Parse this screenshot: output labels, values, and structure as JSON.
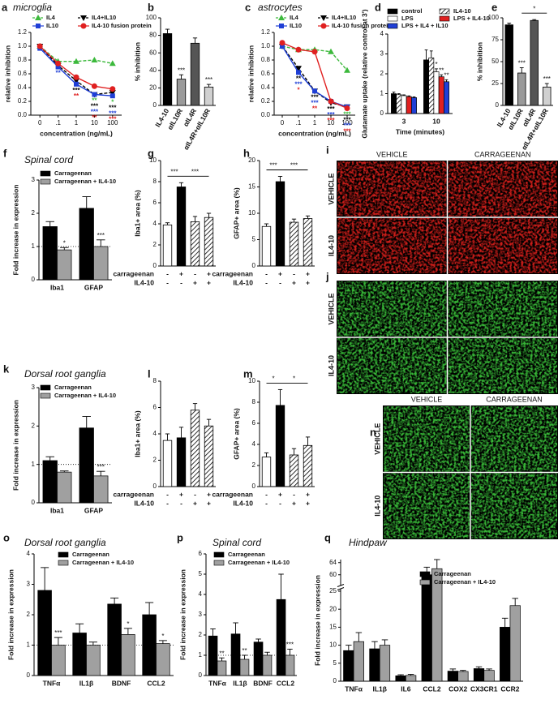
{
  "chart_data": [
    {
      "panel": "a",
      "type": "line",
      "title": "microglia",
      "categories": [
        "0",
        ".1",
        "1",
        "10",
        "100"
      ],
      "xlabel": "concentration (ng/mL)",
      "ylabel": "relative inhibition",
      "ylim": [
        0,
        1.2
      ],
      "yticks": [
        {
          "value": 0,
          "label": "0.0"
        },
        0.2,
        0.4,
        0.6,
        0.8,
        {
          "value": 1,
          "label": "1.0"
        },
        1.2
      ],
      "series": [
        {
          "name": "IL4",
          "color": "#3cb93c",
          "dashed": true,
          "marker": "triangle",
          "values": [
            1.0,
            0.78,
            0.78,
            0.8,
            0.75
          ],
          "sig": [
            null,
            null,
            null,
            "**",
            "*"
          ]
        },
        {
          "name": "IL4+IL10",
          "color": "#000000",
          "dashed": true,
          "marker": "triangle-down",
          "values": [
            1.0,
            0.72,
            0.5,
            0.3,
            0.33
          ],
          "sig": [
            null,
            null,
            "***",
            "***",
            "***"
          ]
        },
        {
          "name": "IL10",
          "color": "#1f3fd6",
          "marker": "square",
          "values": [
            0.97,
            0.7,
            0.45,
            0.3,
            0.28
          ],
          "sig": [
            null,
            "**",
            null,
            "***",
            "***"
          ]
        },
        {
          "name": "IL4-10 fusion protein",
          "color": "#e02020",
          "marker": "circle",
          "values": [
            1.0,
            0.75,
            0.55,
            0.42,
            0.38
          ],
          "sig": [
            null,
            null,
            "**",
            "**",
            "***"
          ]
        }
      ]
    },
    {
      "panel": "b",
      "type": "bar",
      "ylabel": "% inhibition",
      "categories": [
        "IL4-10",
        "αIL10R",
        "αIL4R",
        "αIL4R+αIL10R"
      ],
      "values": [
        82,
        30,
        71,
        21
      ],
      "errors": [
        5,
        5,
        6,
        3
      ],
      "fills": [
        "#000000",
        "#9a9a9a",
        "#555555",
        "#d0d0d0"
      ],
      "sig": [
        null,
        "***",
        null,
        "***"
      ],
      "ylim": [
        0,
        100
      ],
      "yticks": [
        0,
        20,
        40,
        60,
        80,
        100
      ]
    },
    {
      "panel": "c",
      "type": "line",
      "title": "astrocytes",
      "categories": [
        "0",
        ".1",
        "1",
        "10",
        "100"
      ],
      "xlabel": "concentration (ng/mL)",
      "ylabel": "relative inhibition",
      "ylim": [
        0,
        1.2
      ],
      "yticks": [
        {
          "value": 0,
          "label": "0.0"
        },
        0.2,
        0.4,
        0.6,
        0.8,
        {
          "value": 1,
          "label": "1.0"
        },
        1.2
      ],
      "series": [
        {
          "name": "IL4",
          "color": "#3cb93c",
          "dashed": true,
          "marker": "triangle",
          "values": [
            1.0,
            0.95,
            0.95,
            0.92,
            0.65
          ],
          "sig": [
            null,
            null,
            null,
            null,
            "***"
          ]
        },
        {
          "name": "IL4+IL10",
          "color": "#000000",
          "dashed": true,
          "marker": "triangle-down",
          "values": [
            1.0,
            0.68,
            0.35,
            0.18,
            0.12
          ],
          "sig": [
            null,
            "**",
            "***",
            "***",
            "***"
          ]
        },
        {
          "name": "IL10",
          "color": "#1f3fd6",
          "marker": "square",
          "values": [
            1.0,
            0.62,
            0.35,
            0.2,
            0.12
          ],
          "sig": [
            null,
            "***",
            "***",
            "***",
            "***"
          ]
        },
        {
          "name": "IL4-10 fusion protein",
          "color": "#e02020",
          "marker": "circle",
          "values": [
            1.05,
            0.95,
            0.92,
            0.2,
            0.1
          ],
          "sig": [
            null,
            "*",
            "**",
            "***",
            "***"
          ]
        }
      ]
    },
    {
      "panel": "d",
      "type": "grouped-bar",
      "ylabel": "Glutamate uptake (relative control at 3')",
      "xlabel": "Time (minutes)",
      "categories": [
        "3",
        "10"
      ],
      "ylim": [
        0,
        4
      ],
      "yticks": [
        0,
        1,
        2,
        3,
        4
      ],
      "series": [
        {
          "name": "control",
          "color": "#000000",
          "values": [
            1.0,
            2.7
          ],
          "errors": [
            0.08,
            0.5
          ]
        },
        {
          "name": "IL4-10",
          "color": "hatch",
          "values": [
            0.95,
            2.8
          ],
          "errors": [
            0.05,
            0.35
          ]
        },
        {
          "name": "LPS",
          "color": "#ffffff",
          "values": [
            0.9,
            2.1
          ],
          "errors": [
            0.04,
            0.15
          ],
          "sig": [
            null,
            "*"
          ]
        },
        {
          "name": "LPS + IL4-10",
          "color": "#e02020",
          "values": [
            0.85,
            1.85
          ],
          "errors": [
            0.04,
            0.1
          ],
          "sig": [
            null,
            "**"
          ]
        },
        {
          "name": "LPS + IL4 + IL10",
          "color": "#1f3fd6",
          "values": [
            0.8,
            1.6
          ],
          "errors": [
            0.04,
            0.1
          ],
          "sig": [
            null,
            "**"
          ]
        }
      ]
    },
    {
      "panel": "e",
      "type": "bar",
      "ylabel": "% inhibition",
      "categories": [
        "IL4-10",
        "αIL10R",
        "αIL4R",
        "αIL4R+αIL10R"
      ],
      "values": [
        92,
        37,
        97,
        21
      ],
      "errors": [
        2,
        6,
        1,
        4
      ],
      "fills": [
        "#000000",
        "#9a9a9a",
        "#555555",
        "#d0d0d0"
      ],
      "sig": [
        null,
        "***",
        null,
        "***"
      ],
      "ylim": [
        0,
        100
      ],
      "yticks": [
        0,
        25,
        50,
        75,
        100
      ],
      "brackets": [
        {
          "from": 1,
          "to": 3,
          "label": "*"
        }
      ]
    },
    {
      "panel": "f",
      "type": "grouped-bar",
      "title": "Spinal cord",
      "ylabel": "Fold increase in expression",
      "categories": [
        "Iba1",
        "GFAP"
      ],
      "ylim": [
        0,
        3
      ],
      "yticks": [
        0,
        1,
        2,
        3
      ],
      "reference_line": 1,
      "series": [
        {
          "name": "Carrageenan",
          "color": "#000000",
          "values": [
            1.6,
            2.15
          ],
          "errors": [
            0.15,
            0.35
          ]
        },
        {
          "name": "Carrageenan + IL4-10",
          "color": "#a0a0a0",
          "values": [
            0.9,
            1.0
          ],
          "errors": [
            0.07,
            0.2
          ],
          "sig": [
            "*",
            "***"
          ]
        }
      ]
    },
    {
      "panel": "g",
      "type": "bar",
      "ylabel": "Iba1+ area (%)",
      "values": [
        3.9,
        7.5,
        4.2,
        4.6
      ],
      "errors": [
        0.2,
        0.4,
        0.5,
        0.4
      ],
      "fills": [
        "#ffffff",
        "#000000",
        "hatch",
        "hatch"
      ],
      "ylim": [
        0,
        10
      ],
      "yticks": [
        0,
        2,
        4,
        6,
        8,
        10
      ],
      "conditions": [
        {
          "name": "carrageenan",
          "marks": [
            "-",
            "+",
            "-",
            "+"
          ]
        },
        {
          "name": "IL4-10",
          "marks": [
            "-",
            "-",
            "+",
            "+"
          ]
        }
      ],
      "brackets": [
        {
          "from": 0,
          "to": 1,
          "label": "***"
        },
        {
          "from": 1,
          "to": 3,
          "label": "***"
        }
      ]
    },
    {
      "panel": "h",
      "type": "bar",
      "ylabel": "GFAP+ area (%)",
      "values": [
        7.5,
        16,
        8.3,
        9
      ],
      "errors": [
        0.5,
        1,
        0.6,
        0.5
      ],
      "fills": [
        "#ffffff",
        "#000000",
        "hatch",
        "hatch"
      ],
      "ylim": [
        0,
        20
      ],
      "yticks": [
        0,
        5,
        10,
        15,
        20
      ],
      "conditions": [
        {
          "name": "carrageenan",
          "marks": [
            "-",
            "+",
            "-",
            "+"
          ]
        },
        {
          "name": "IL4-10",
          "marks": [
            "-",
            "-",
            "+",
            "+"
          ]
        }
      ],
      "brackets": [
        {
          "from": 0,
          "to": 1,
          "label": "***"
        },
        {
          "from": 1,
          "to": 3,
          "label": "***"
        }
      ]
    },
    {
      "panel": "i",
      "type": "image",
      "color": "#e0201c",
      "columns": [
        "VEHICLE",
        "CARRAGEENAN"
      ],
      "rows": [
        "VEHICLE",
        "IL4-10"
      ]
    },
    {
      "panel": "j",
      "type": "image",
      "color": "#3cc83c",
      "rows": [
        "VEHICLE",
        "IL4-10"
      ]
    },
    {
      "panel": "k",
      "type": "grouped-bar",
      "title": "Dorsal root ganglia",
      "ylabel": "Fold increase in expression",
      "categories": [
        "Iba1",
        "GFAP"
      ],
      "ylim": [
        0,
        3
      ],
      "yticks": [
        0,
        1,
        2,
        3
      ],
      "reference_line": 1,
      "series": [
        {
          "name": "Carrageenan",
          "color": "#000000",
          "values": [
            1.1,
            1.95
          ],
          "errors": [
            0.1,
            0.3
          ]
        },
        {
          "name": "Carrageenan + IL4-10",
          "color": "#a0a0a0",
          "values": [
            0.8,
            0.7
          ],
          "errors": [
            0.03,
            0.12
          ],
          "sig": [
            null,
            "***"
          ]
        }
      ]
    },
    {
      "panel": "l",
      "type": "bar",
      "ylabel": "Iba1+ area (%)",
      "values": [
        3.5,
        3.7,
        5.8,
        4.6
      ],
      "errors": [
        0.5,
        0.8,
        0.5,
        0.5
      ],
      "fills": [
        "#ffffff",
        "#000000",
        "hatch",
        "hatch"
      ],
      "ylim": [
        0,
        8
      ],
      "yticks": [
        0,
        2,
        4,
        6,
        8
      ],
      "conditions": [
        {
          "name": "carrageenan",
          "marks": [
            "-",
            "+",
            "-",
            "+"
          ]
        },
        {
          "name": "IL4-10",
          "marks": [
            "-",
            "-",
            "+",
            "+"
          ]
        }
      ]
    },
    {
      "panel": "m",
      "type": "bar",
      "ylabel": "GFAP+ area (%)",
      "values": [
        2.8,
        7.7,
        3.0,
        3.9
      ],
      "errors": [
        0.4,
        1.5,
        0.6,
        0.8
      ],
      "fills": [
        "#ffffff",
        "#000000",
        "hatch",
        "hatch"
      ],
      "ylim": [
        0,
        10
      ],
      "yticks": [
        0,
        2,
        4,
        6,
        8,
        10
      ],
      "conditions": [
        {
          "name": "carrageenan",
          "marks": [
            "-",
            "+",
            "-",
            "+"
          ]
        },
        {
          "name": "IL4-10",
          "marks": [
            "-",
            "-",
            "+",
            "+"
          ]
        }
      ],
      "brackets": [
        {
          "from": 0,
          "to": 1,
          "label": "*"
        },
        {
          "from": 1,
          "to": 3,
          "label": "*"
        }
      ]
    },
    {
      "panel": "n",
      "type": "image",
      "color": "#3cc83c",
      "columns": [
        "VEHICLE",
        "CARRAGEENAN"
      ],
      "rows": [
        "VEHICLE",
        "IL4-10"
      ]
    },
    {
      "panel": "o",
      "type": "grouped-bar",
      "title": "Dorsal root ganglia",
      "ylabel": "Fold increase in expression",
      "categories": [
        "TNFα",
        "IL1β",
        "BDNF",
        "CCL2"
      ],
      "ylim": [
        0,
        4
      ],
      "yticks": [
        0,
        1,
        2,
        3,
        4
      ],
      "reference_line": 1,
      "series": [
        {
          "name": "Carrageenan",
          "color": "#000000",
          "values": [
            2.8,
            1.4,
            2.35,
            2.0
          ],
          "errors": [
            0.75,
            0.3,
            0.2,
            0.4
          ]
        },
        {
          "name": "Carrageenan + IL4-10",
          "color": "#a0a0a0",
          "values": [
            1.0,
            1.0,
            1.35,
            1.05
          ],
          "errors": [
            0.25,
            0.1,
            0.2,
            0.1
          ],
          "sig": [
            "***",
            null,
            "*",
            "*"
          ]
        }
      ]
    },
    {
      "panel": "p",
      "type": "grouped-bar",
      "title": "Spinal cord",
      "ylabel": "Fold increase in expression",
      "categories": [
        "TNFα",
        "IL1β",
        "BDNF",
        "CCL2"
      ],
      "ylim": [
        0,
        6
      ],
      "yticks": [
        0,
        1,
        2,
        3,
        4,
        5,
        6
      ],
      "reference_line": 1,
      "series": [
        {
          "name": "Carrageenan",
          "color": "#000000",
          "values": [
            1.95,
            2.05,
            1.65,
            3.75
          ],
          "errors": [
            0.35,
            0.55,
            0.15,
            1.25
          ]
        },
        {
          "name": "Carrageenan + IL4-10",
          "color": "#a0a0a0",
          "values": [
            0.72,
            0.8,
            1.0,
            1.0
          ],
          "errors": [
            0.15,
            0.2,
            0.15,
            0.3
          ],
          "sig": [
            "**",
            "**",
            null,
            "***"
          ]
        }
      ]
    },
    {
      "panel": "q",
      "type": "grouped-bar",
      "title": "Hindpaw",
      "ylabel": "Fold increase in expression",
      "categories": [
        "TNFα",
        "IL1β",
        "IL6",
        "CCL2",
        "COX2",
        "CX3CR1",
        "CCR2"
      ],
      "ylim": [
        0,
        65
      ],
      "ybreak": [
        25,
        57
      ],
      "yticks": [
        0,
        5,
        10,
        15,
        20,
        25,
        60,
        64
      ],
      "series": [
        {
          "name": "Carrageenan",
          "color": "#000000",
          "values": [
            8.5,
            9,
            1.5,
            60,
            2.8,
            3.5,
            15
          ],
          "errors": [
            1.5,
            2,
            0.3,
            2.5,
            0.6,
            0.5,
            2.5
          ]
        },
        {
          "name": "Carrageenan + IL4-10",
          "color": "#a0a0a0",
          "values": [
            11,
            10,
            1.6,
            62,
            2.7,
            3,
            21
          ],
          "errors": [
            2.5,
            1.5,
            0.3,
            3,
            0.3,
            0.4,
            2
          ]
        }
      ]
    }
  ]
}
